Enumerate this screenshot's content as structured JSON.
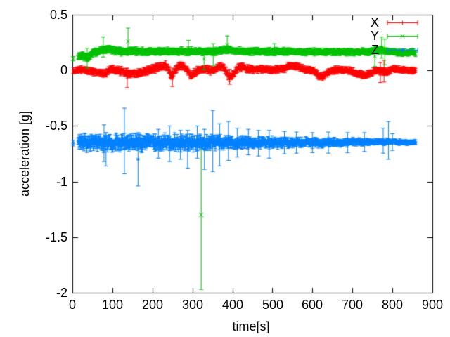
{
  "figure": {
    "background": "#ffffff",
    "border_color": "#000000",
    "text_color": "#000000"
  },
  "chart_data": {
    "type": "scatter-errorbars",
    "title": "",
    "xlabel": "time[s]",
    "ylabel": "acceleration [g]",
    "xlim": [
      0,
      900
    ],
    "ylim": [
      -2,
      0.5
    ],
    "xticks": [
      "0",
      "100",
      "200",
      "300",
      "400",
      "500",
      "600",
      "700",
      "800",
      "900"
    ],
    "yticks": [
      "0.5",
      "0",
      "-0.5",
      "-1",
      "-1.5",
      "-2"
    ],
    "grid": false,
    "legend": {
      "position": "top-right-inside",
      "entries": [
        "X",
        "Y",
        "Z"
      ]
    },
    "series": [
      {
        "name": "X",
        "color": "#ff0000",
        "marker": "plus",
        "band_range": [
          2,
          858
        ],
        "first_points": [],
        "mean_keyframes": [
          [
            2,
            -0.005
          ],
          [
            16,
            0.0
          ],
          [
            30,
            0.008
          ],
          [
            42,
            -0.005
          ],
          [
            55,
            -0.012
          ],
          [
            70,
            -0.022
          ],
          [
            83,
            -0.028
          ],
          [
            92,
            0.005
          ],
          [
            100,
            0.015
          ],
          [
            110,
            0.003
          ],
          [
            122,
            -0.008
          ],
          [
            135,
            -0.022
          ],
          [
            150,
            -0.03
          ],
          [
            163,
            -0.028
          ],
          [
            175,
            -0.015
          ],
          [
            190,
            0.0
          ],
          [
            202,
            0.012
          ],
          [
            212,
            0.025
          ],
          [
            222,
            0.04
          ],
          [
            232,
            0.045
          ],
          [
            240,
            0.01
          ],
          [
            249,
            -0.06
          ],
          [
            257,
            0.0
          ],
          [
            266,
            0.035
          ],
          [
            276,
            0.045
          ],
          [
            286,
            0.012
          ],
          [
            296,
            -0.05
          ],
          [
            306,
            -0.02
          ],
          [
            316,
            0.01
          ],
          [
            330,
            0.015
          ],
          [
            345,
            0.0
          ],
          [
            357,
            0.012
          ],
          [
            368,
            0.035
          ],
          [
            376,
            0.04
          ],
          [
            385,
            -0.01
          ],
          [
            391,
            -0.06
          ],
          [
            398,
            -0.055
          ],
          [
            405,
            -0.02
          ],
          [
            412,
            0.015
          ],
          [
            420,
            0.03
          ],
          [
            430,
            0.025
          ],
          [
            442,
            0.01
          ],
          [
            455,
            0.002
          ],
          [
            468,
            0.012
          ],
          [
            480,
            0.01
          ],
          [
            492,
            0.002
          ],
          [
            505,
            0.008
          ],
          [
            518,
            0.012
          ],
          [
            530,
            0.015
          ],
          [
            540,
            0.045
          ],
          [
            552,
            0.05
          ],
          [
            563,
            0.035
          ],
          [
            573,
            0.015
          ],
          [
            583,
            0.008
          ],
          [
            593,
            0.0
          ],
          [
            604,
            -0.008
          ],
          [
            616,
            -0.05
          ],
          [
            626,
            -0.058
          ],
          [
            637,
            -0.03
          ],
          [
            648,
            -0.008
          ],
          [
            660,
            0.004
          ],
          [
            673,
            0.006
          ],
          [
            686,
            0.0
          ],
          [
            698,
            -0.01
          ],
          [
            710,
            -0.022
          ],
          [
            722,
            -0.04
          ],
          [
            733,
            -0.042
          ],
          [
            744,
            -0.025
          ],
          [
            755,
            -0.008
          ],
          [
            765,
            0.002
          ],
          [
            775,
            -0.012
          ],
          [
            786,
            -0.015
          ],
          [
            796,
            0.006
          ],
          [
            808,
            0.014
          ],
          [
            820,
            0.006
          ],
          [
            836,
            0.0
          ],
          [
            858,
            -0.004
          ]
        ],
        "scatter_halfwidth_keyframes": [
          [
            2,
            0.008
          ],
          [
            16,
            0.012
          ],
          [
            200,
            0.014
          ],
          [
            450,
            0.013
          ],
          [
            858,
            0.011
          ]
        ],
        "errorbar_halfheight_keyframes": [
          [
            2,
            0.018
          ],
          [
            16,
            0.024
          ],
          [
            200,
            0.03
          ],
          [
            450,
            0.026
          ],
          [
            760,
            0.026
          ],
          [
            858,
            0.022
          ]
        ],
        "spikes": [
          [
            137,
            -0.155,
            0.02
          ],
          [
            250,
            -0.145,
            0.02
          ],
          [
            393,
            -0.125,
            0.01
          ],
          [
            770,
            -0.11,
            0.07
          ],
          [
            779,
            -0.105,
            0.09
          ]
        ],
        "outliers": []
      },
      {
        "name": "Y",
        "color": "#00c000",
        "marker": "cross",
        "band_range": [
          14,
          858
        ],
        "first_points": [
          [
            2,
            0.105,
            0.02
          ]
        ],
        "mean_keyframes": [
          [
            14,
            0.12
          ],
          [
            24,
            0.135
          ],
          [
            32,
            0.12
          ],
          [
            38,
            0.105
          ],
          [
            48,
            0.15
          ],
          [
            60,
            0.165
          ],
          [
            75,
            0.18
          ],
          [
            90,
            0.19
          ],
          [
            105,
            0.175
          ],
          [
            125,
            0.17
          ],
          [
            140,
            0.175
          ],
          [
            160,
            0.172
          ],
          [
            180,
            0.168
          ],
          [
            200,
            0.17
          ],
          [
            220,
            0.168
          ],
          [
            240,
            0.17
          ],
          [
            260,
            0.172
          ],
          [
            280,
            0.17
          ],
          [
            300,
            0.172
          ],
          [
            320,
            0.17
          ],
          [
            340,
            0.168
          ],
          [
            360,
            0.17
          ],
          [
            380,
            0.185
          ],
          [
            392,
            0.19
          ],
          [
            405,
            0.178
          ],
          [
            420,
            0.17
          ],
          [
            450,
            0.168
          ],
          [
            480,
            0.168
          ],
          [
            510,
            0.17
          ],
          [
            540,
            0.168
          ],
          [
            570,
            0.166
          ],
          [
            600,
            0.168
          ],
          [
            630,
            0.166
          ],
          [
            660,
            0.165
          ],
          [
            690,
            0.165
          ],
          [
            720,
            0.166
          ],
          [
            745,
            0.17
          ],
          [
            765,
            0.178
          ],
          [
            780,
            0.176
          ],
          [
            795,
            0.168
          ],
          [
            815,
            0.165
          ],
          [
            835,
            0.162
          ],
          [
            858,
            0.158
          ]
        ],
        "scatter_halfwidth_keyframes": [
          [
            2,
            0.01
          ],
          [
            16,
            0.013
          ],
          [
            858,
            0.012
          ]
        ],
        "errorbar_halfheight_keyframes": [
          [
            2,
            0.018
          ],
          [
            16,
            0.028
          ],
          [
            400,
            0.026
          ],
          [
            858,
            0.024
          ]
        ],
        "spikes": [
          [
            37,
            0.02,
            0.2
          ],
          [
            77,
            0.12,
            0.3
          ],
          [
            139,
            0.14,
            0.38
          ],
          [
            290,
            0.13,
            0.27
          ],
          [
            329,
            0.005,
            0.2
          ],
          [
            352,
            0.04,
            0.24
          ],
          [
            387,
            0.15,
            0.31
          ],
          [
            505,
            0.13,
            0.24
          ],
          [
            756,
            0.035,
            0.22
          ],
          [
            773,
            0.11,
            0.3
          ],
          [
            781,
            0.05,
            0.28
          ]
        ],
        "outliers": [
          [
            322,
            -1.3,
            -1.97,
            -0.63
          ]
        ]
      },
      {
        "name": "Z",
        "color": "#0080ff",
        "marker": "star",
        "band_range": [
          14,
          858
        ],
        "first_points": [
          [
            2,
            -0.655,
            0.025
          ]
        ],
        "mean_keyframes": [
          [
            14,
            -0.652
          ],
          [
            40,
            -0.65
          ],
          [
            70,
            -0.648
          ],
          [
            85,
            -0.652
          ],
          [
            100,
            -0.65
          ],
          [
            130,
            -0.648
          ],
          [
            160,
            -0.65
          ],
          [
            190,
            -0.652
          ],
          [
            220,
            -0.65
          ],
          [
            250,
            -0.648
          ],
          [
            280,
            -0.65
          ],
          [
            310,
            -0.648
          ],
          [
            340,
            -0.65
          ],
          [
            370,
            -0.648
          ],
          [
            400,
            -0.65
          ],
          [
            430,
            -0.65
          ],
          [
            460,
            -0.648
          ],
          [
            490,
            -0.65
          ],
          [
            520,
            -0.648
          ],
          [
            550,
            -0.65
          ],
          [
            580,
            -0.648
          ],
          [
            610,
            -0.65
          ],
          [
            640,
            -0.648
          ],
          [
            670,
            -0.648
          ],
          [
            700,
            -0.645
          ],
          [
            730,
            -0.645
          ],
          [
            760,
            -0.643
          ],
          [
            790,
            -0.642
          ],
          [
            820,
            -0.645
          ],
          [
            858,
            -0.645
          ]
        ],
        "scatter_halfwidth_keyframes": [
          [
            2,
            0.01
          ],
          [
            16,
            0.022
          ],
          [
            30,
            0.034
          ],
          [
            100,
            0.036
          ],
          [
            300,
            0.034
          ],
          [
            400,
            0.03
          ],
          [
            500,
            0.026
          ],
          [
            600,
            0.022
          ],
          [
            680,
            0.018
          ],
          [
            760,
            0.014
          ],
          [
            820,
            0.012
          ],
          [
            858,
            0.011
          ]
        ],
        "errorbar_halfheight_keyframes": [
          [
            2,
            0.02
          ],
          [
            16,
            0.05
          ],
          [
            150,
            0.05
          ],
          [
            300,
            0.048
          ],
          [
            400,
            0.04
          ],
          [
            500,
            0.034
          ],
          [
            600,
            0.028
          ],
          [
            700,
            0.024
          ],
          [
            780,
            0.02
          ],
          [
            858,
            0.018
          ]
        ],
        "spikes": [
          [
            79,
            -0.82,
            -0.49
          ],
          [
            84,
            -0.86,
            -0.56
          ],
          [
            130,
            -0.93,
            -0.34
          ],
          [
            164,
            -1.04,
            -0.56
          ],
          [
            215,
            -0.79,
            -0.53
          ],
          [
            243,
            -0.82,
            -0.5
          ],
          [
            270,
            -0.8,
            -0.54
          ],
          [
            288,
            -0.88,
            -0.54
          ],
          [
            312,
            -0.79,
            -0.5
          ],
          [
            330,
            -0.89,
            -0.53
          ],
          [
            351,
            -0.91,
            -0.36
          ],
          [
            368,
            -0.86,
            -0.48
          ],
          [
            390,
            -0.81,
            -0.46
          ],
          [
            412,
            -0.78,
            -0.52
          ],
          [
            440,
            -0.76,
            -0.53
          ],
          [
            465,
            -0.77,
            -0.54
          ],
          [
            492,
            -0.79,
            -0.54
          ],
          [
            530,
            -0.75,
            -0.55
          ],
          [
            560,
            -0.745,
            -0.555
          ],
          [
            600,
            -0.74,
            -0.56
          ],
          [
            640,
            -0.745,
            -0.555
          ],
          [
            688,
            -0.74,
            -0.56
          ],
          [
            730,
            -0.73,
            -0.56
          ],
          [
            777,
            -0.745,
            -0.52
          ],
          [
            790,
            -0.8,
            -0.46
          ],
          [
            800,
            -0.72,
            -0.57
          ]
        ],
        "outliers": []
      }
    ]
  }
}
